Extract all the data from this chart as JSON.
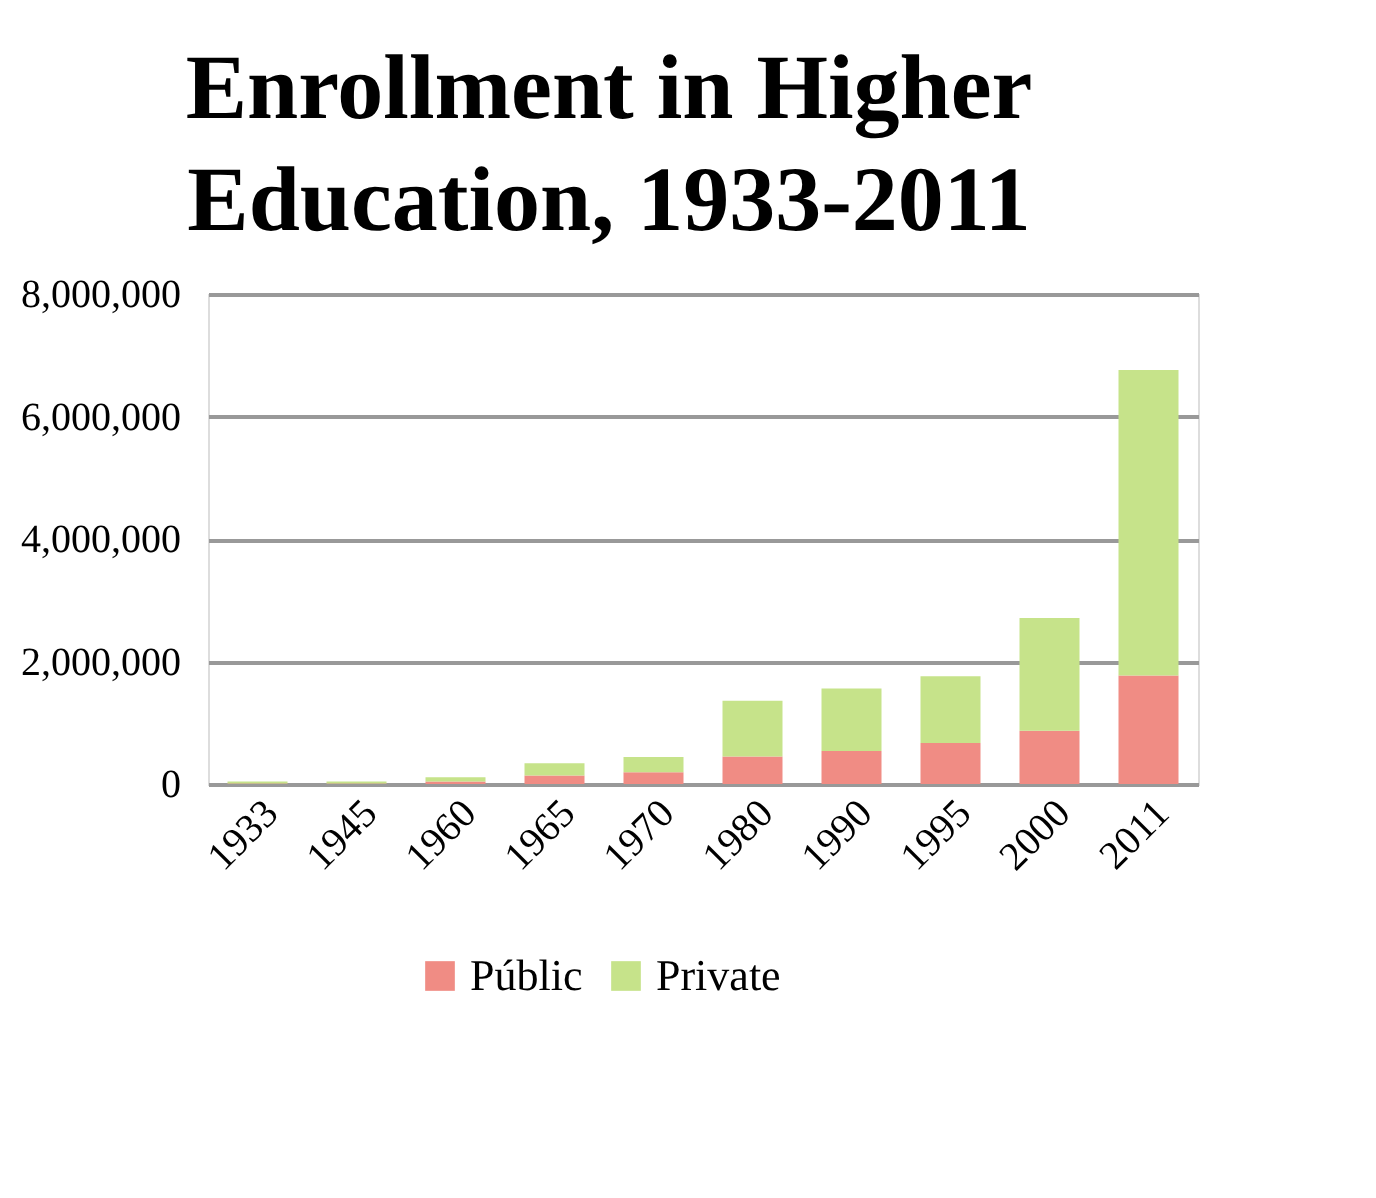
{
  "chart_data": {
    "type": "bar",
    "title": "Enrollment in Higher Education, 1933-2011",
    "stacked": true,
    "categories": [
      "1933",
      "1945",
      "1960",
      "1965",
      "1970",
      "1980",
      "1990",
      "1995",
      "2000",
      "2011"
    ],
    "series": [
      {
        "name": "Públic",
        "color": "#f08c84",
        "values": [
          10000,
          10000,
          40000,
          140000,
          190000,
          450000,
          540000,
          670000,
          870000,
          1770000
        ]
      },
      {
        "name": "Private",
        "color": "#c6e38a",
        "values": [
          30000,
          30000,
          70000,
          200000,
          250000,
          910000,
          1020000,
          1090000,
          1840000,
          4990000
        ]
      }
    ],
    "ylim": [
      0,
      8000000
    ],
    "yticks": [
      0,
      {
        "value": 2000000,
        "label": "2,000,000"
      },
      {
        "value": 4000000,
        "label": "4,000,000"
      },
      {
        "value": 6000000,
        "label": "6,000,000"
      },
      {
        "value": 8000000,
        "label": "8,000,000"
      }
    ],
    "grid": "y",
    "legend": "bottom"
  }
}
